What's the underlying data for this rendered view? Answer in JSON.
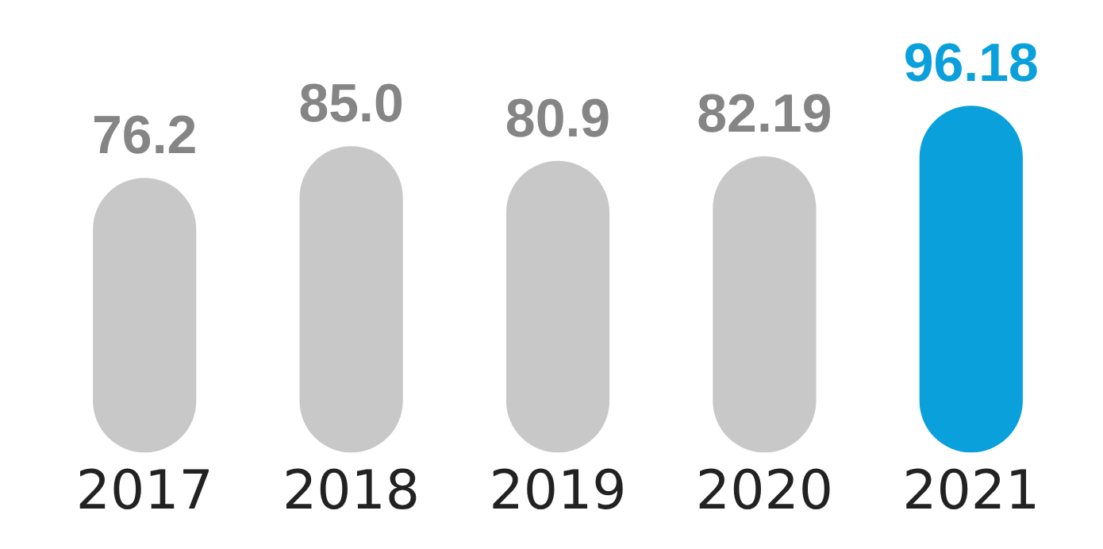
{
  "chart_data": {
    "type": "bar",
    "categories": [
      "2017",
      "2018",
      "2019",
      "2020",
      "2021"
    ],
    "values": [
      76.2,
      85.0,
      80.9,
      82.19,
      96.18
    ],
    "value_labels": [
      "76.2",
      "85.0",
      "80.9",
      "82.19",
      "96.18"
    ],
    "colors": [
      "#c8c8c8",
      "#c8c8c8",
      "#c8c8c8",
      "#c8c8c8",
      "#0aa0dc"
    ],
    "relative": false,
    "grid": false,
    "legend": false
  }
}
